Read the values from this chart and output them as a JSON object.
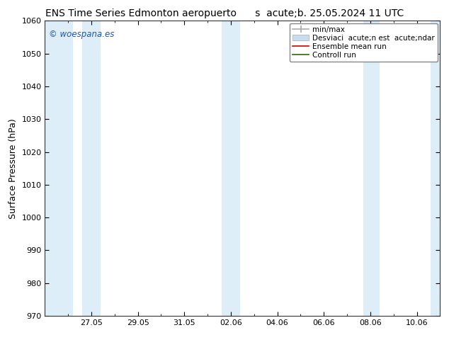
{
  "title_left": "ENS Time Series Edmonton aeropuerto",
  "title_right": "s  acute;b. 25.05.2024 11 UTC",
  "ylabel": "Surface Pressure (hPa)",
  "ylim": [
    970,
    1060
  ],
  "yticks": [
    970,
    980,
    990,
    1000,
    1010,
    1020,
    1030,
    1040,
    1050,
    1060
  ],
  "x_labels": [
    "27.05",
    "29.05",
    "31.05",
    "02.06",
    "04.06",
    "06.06",
    "08.06",
    "10.06"
  ],
  "x_positions": [
    2,
    4,
    6,
    8,
    10,
    12,
    14,
    16
  ],
  "xlim": [
    0,
    17
  ],
  "shade_bands": [
    {
      "x": [
        0.0,
        1.2
      ],
      "color": "#ddeef9"
    },
    {
      "x": [
        1.6,
        2.4
      ],
      "color": "#ddeef9"
    },
    {
      "x": [
        7.6,
        8.4
      ],
      "color": "#ddeef9"
    },
    {
      "x": [
        13.7,
        14.4
      ],
      "color": "#ddeef9"
    },
    {
      "x": [
        16.6,
        17.0
      ],
      "color": "#ddeef9"
    }
  ],
  "watermark": "© woespana.es",
  "watermark_color": "#2255aa",
  "bg_color": "#ffffff",
  "plot_bg_color": "#ffffff",
  "title_fontsize": 10,
  "tick_fontsize": 8,
  "ylabel_fontsize": 9,
  "legend_fontsize": 7.5,
  "legend_labels": [
    "min/max",
    "Desviaci  acute;n est  acute;ndar",
    "Ensemble mean run",
    "Controll run"
  ],
  "legend_colors": [
    "#aaaaaa",
    "#c8ddf0",
    "#cc0000",
    "#336600"
  ],
  "legend_lw": [
    1.2,
    6,
    1.2,
    1.2
  ]
}
